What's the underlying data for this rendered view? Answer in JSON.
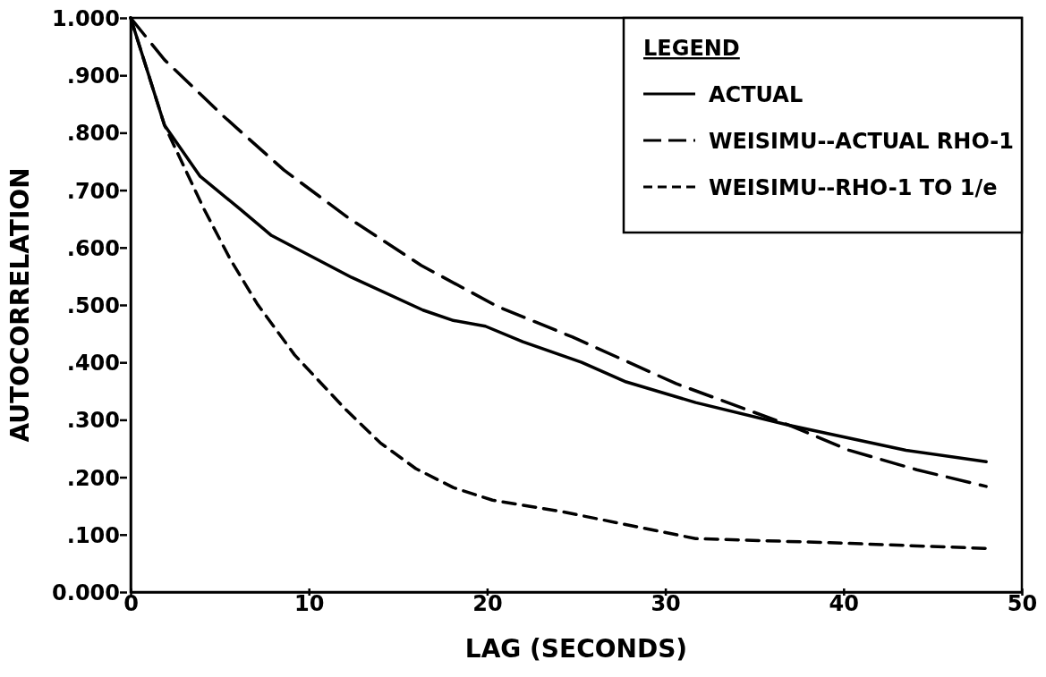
{
  "chart_data": {
    "type": "line",
    "xlabel": "LAG (SECONDS)",
    "ylabel": "AUTOCORRELATION",
    "legend_title": "LEGEND",
    "legend": "top right",
    "grid": false,
    "xlim": [
      0,
      50
    ],
    "xticks": [
      0,
      10,
      20,
      30,
      40,
      50
    ],
    "ylim": [
      0,
      1
    ],
    "yticks": [
      {
        "value": 0,
        "label": "0.000"
      },
      {
        "value": 0.1,
        "label": ".100"
      },
      {
        "value": 0.2,
        "label": ".200"
      },
      {
        "value": 0.3,
        "label": ".300"
      },
      {
        "value": 0.4,
        "label": ".400"
      },
      {
        "value": 0.5,
        "label": ".500"
      },
      {
        "value": 0.6,
        "label": ".600"
      },
      {
        "value": 0.7,
        "label": ".700"
      },
      {
        "value": 0.8,
        "label": ".800"
      },
      {
        "value": 0.9,
        "label": ".900"
      },
      {
        "value": 1,
        "label": "1.000"
      }
    ],
    "series": [
      {
        "name": "ACTUAL",
        "color": "#000000",
        "line_style": "solid",
        "x": [
          0,
          1.9,
          3.9,
          6.1,
          7.9,
          12.4,
          16.4,
          18.1,
          19.9,
          22,
          25.3,
          27.8,
          31.7,
          37,
          43.5,
          48
        ],
        "values": [
          1,
          0.813,
          0.724,
          0.668,
          0.621,
          0.548,
          0.491,
          0.473,
          0.463,
          0.436,
          0.4,
          0.366,
          0.33,
          0.29,
          0.247,
          0.227
        ]
      },
      {
        "name": "WEISIMU--ACTUAL RHO-1",
        "color": "#000000",
        "line_style": "dashed",
        "x": [
          0,
          1.9,
          5.2,
          8.6,
          12.2,
          16.3,
          20.6,
          24.8,
          30.6,
          37,
          40.3,
          44.1,
          48
        ],
        "values": [
          1,
          0.927,
          0.829,
          0.735,
          0.652,
          0.569,
          0.497,
          0.444,
          0.363,
          0.29,
          0.247,
          0.213,
          0.184
        ]
      },
      {
        "name": "WEISIMU--RHO-1 TO 1/e",
        "color": "#000000",
        "line_style": "dotted",
        "x": [
          0,
          1.9,
          4.1,
          5.6,
          7.1,
          9.2,
          12,
          14,
          16,
          18.1,
          20.3,
          24.2,
          31.7,
          39.2,
          48
        ],
        "values": [
          1,
          0.813,
          0.668,
          0.579,
          0.502,
          0.413,
          0.32,
          0.26,
          0.215,
          0.182,
          0.16,
          0.14,
          0.093,
          0.086,
          0.076
        ]
      }
    ]
  }
}
